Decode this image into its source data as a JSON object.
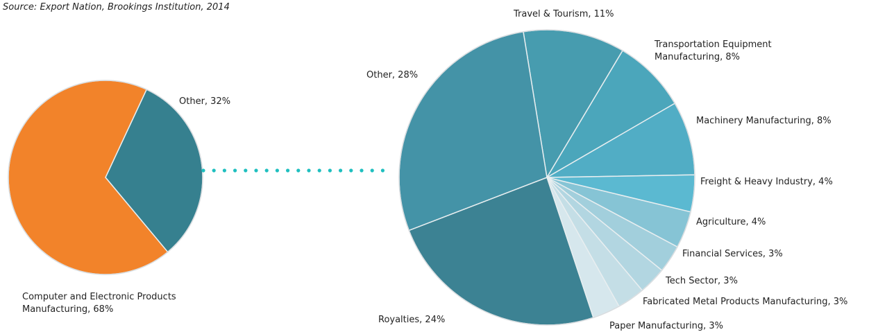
{
  "source": "Source: Export Nation, Brookings Institution, 2014",
  "chart_data": [
    {
      "type": "pie",
      "slices": [
        {
          "label": "Other",
          "value": 32,
          "color": "#36808f"
        },
        {
          "label": "Computer and Electronic Products Manufacturing",
          "value": 68,
          "color": "#f2832a"
        }
      ],
      "labels": [
        {
          "lines": [
            "Other, 32%"
          ]
        },
        {
          "lines": [
            "Computer and Electronic Products",
            "Manufacturing, 68%"
          ]
        }
      ]
    },
    {
      "type": "pie",
      "slices": [
        {
          "label": "Travel & Tourism",
          "value": 11,
          "color": "#479caf"
        },
        {
          "label": "Transportation Equipment Manufacturing",
          "value": 8,
          "color": "#4ba6bb"
        },
        {
          "label": "Machinery Manufacturing",
          "value": 8,
          "color": "#51adc5"
        },
        {
          "label": "Freight & Heavy Industry",
          "value": 4,
          "color": "#5bb9d1"
        },
        {
          "label": "Agriculture",
          "value": 4,
          "color": "#86c4d5"
        },
        {
          "label": "Financial Services",
          "value": 3,
          "color": "#a2cfdc"
        },
        {
          "label": "Tech Sector",
          "value": 3,
          "color": "#b2d6e1"
        },
        {
          "label": "Fabricated Metal Products Manufacturing",
          "value": 3,
          "color": "#c4dee6"
        },
        {
          "label": "Paper Manufacturing",
          "value": 3,
          "color": "#d6e7ed"
        },
        {
          "label": "Royalties",
          "value": 24,
          "color": "#3c8293"
        },
        {
          "label": "Other",
          "value": 28,
          "color": "#4493a7"
        }
      ],
      "labels": [
        {
          "lines": [
            "Travel & Tourism, 11%"
          ]
        },
        {
          "lines": [
            "Transportation Equipment",
            "Manufacturing, 8%"
          ]
        },
        {
          "lines": [
            "Machinery Manufacturing, 8%"
          ]
        },
        {
          "lines": [
            "Freight & Heavy Industry, 4%"
          ]
        },
        {
          "lines": [
            "Agriculture, 4%"
          ]
        },
        {
          "lines": [
            "Financial Services, 3%"
          ]
        },
        {
          "lines": [
            "Tech Sector, 3%"
          ]
        },
        {
          "lines": [
            "Fabricated Metal Products Manufacturing, 3%"
          ]
        },
        {
          "lines": [
            "Paper Manufacturing, 3%"
          ]
        },
        {
          "lines": [
            "Royalties, 24%"
          ]
        },
        {
          "lines": [
            "Other, 28%"
          ]
        }
      ]
    }
  ],
  "connector_color": "#1fbfbf"
}
